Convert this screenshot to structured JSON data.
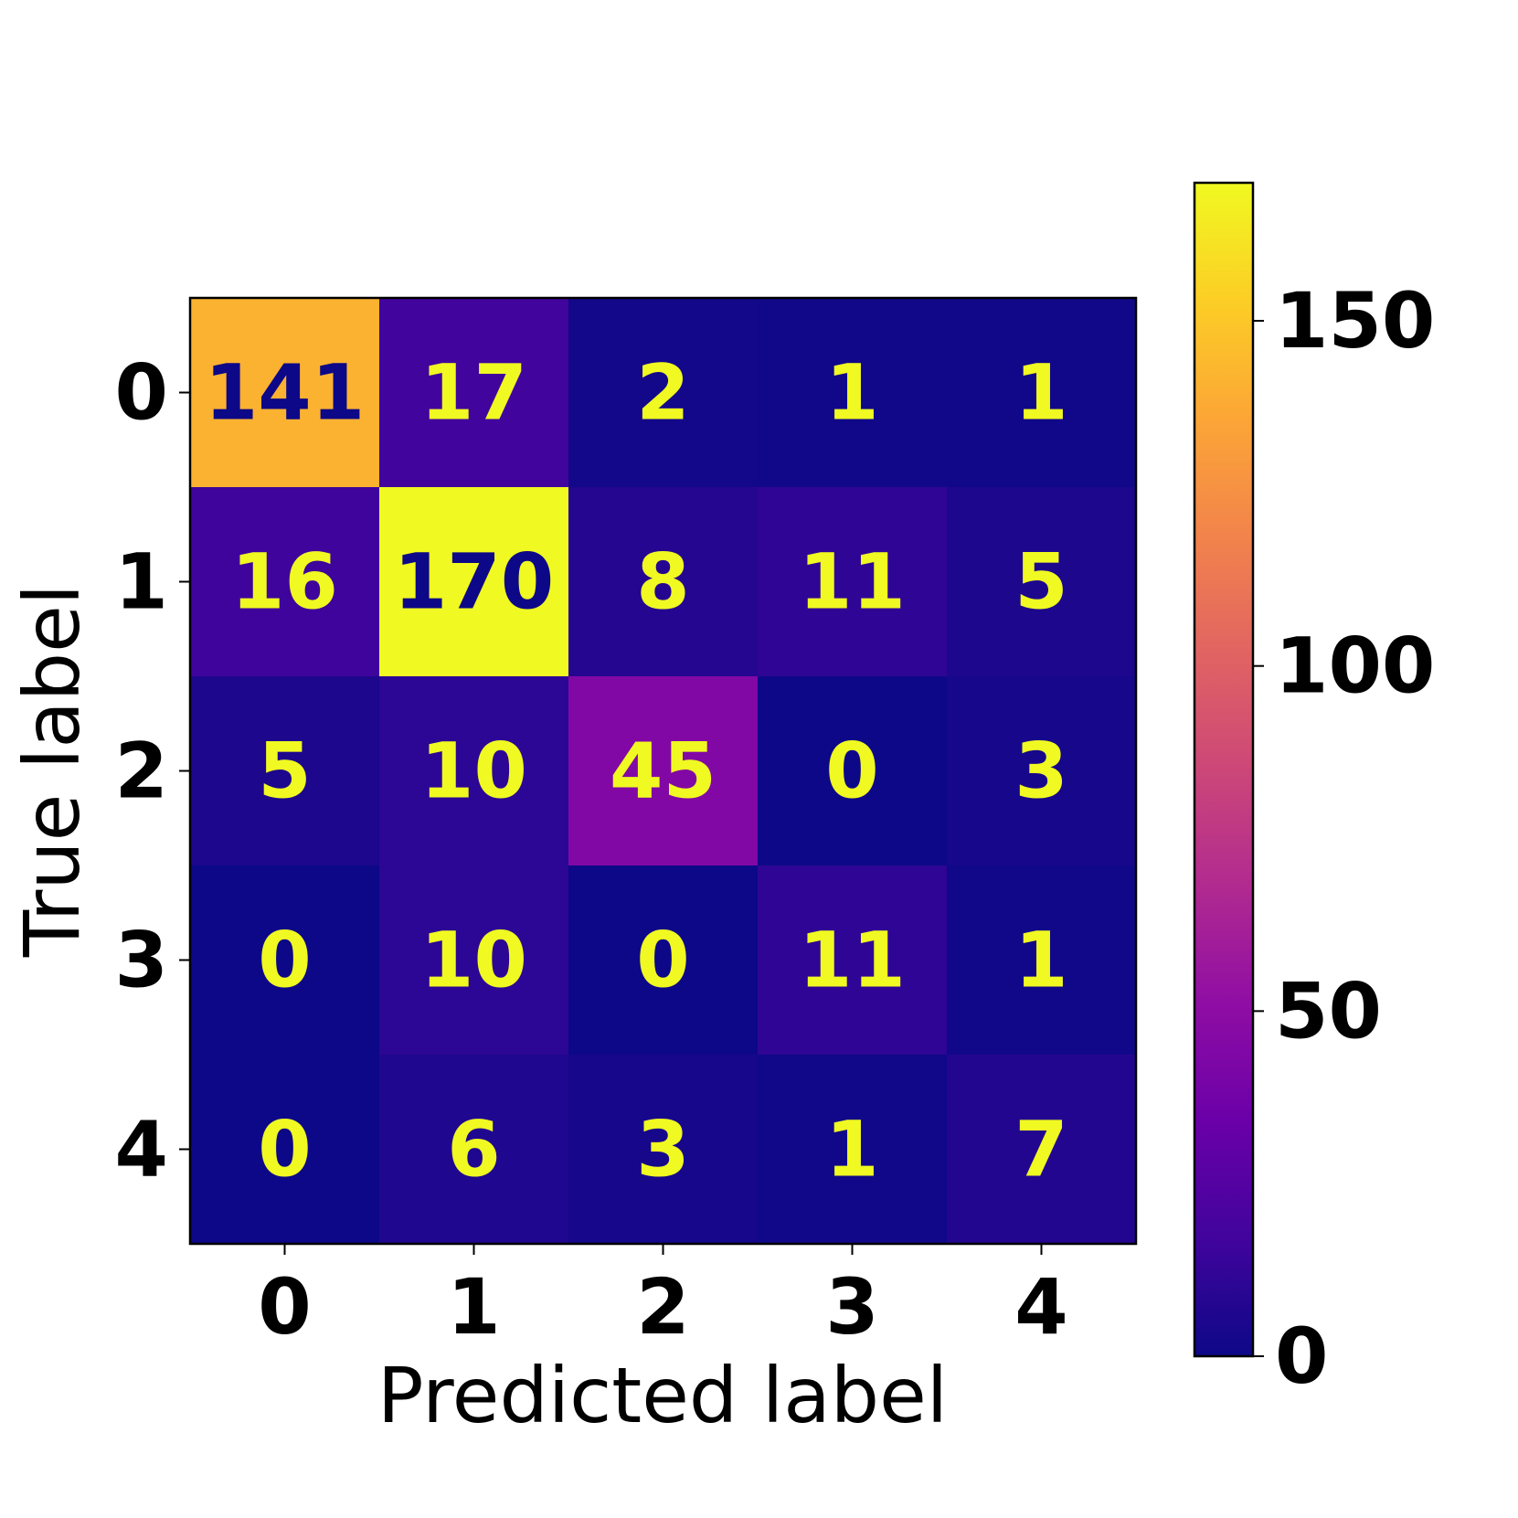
{
  "chart_data": {
    "type": "heatmap",
    "title": "",
    "xlabel": "Predicted label",
    "ylabel": "True label",
    "x_categories": [
      "0",
      "1",
      "2",
      "3",
      "4"
    ],
    "y_categories": [
      "0",
      "1",
      "2",
      "3",
      "4"
    ],
    "matrix": [
      [
        141,
        17,
        2,
        1,
        1
      ],
      [
        16,
        170,
        8,
        11,
        5
      ],
      [
        5,
        10,
        45,
        0,
        3
      ],
      [
        0,
        10,
        0,
        11,
        1
      ],
      [
        0,
        6,
        3,
        1,
        7
      ]
    ],
    "colormap": "plasma",
    "colorbar": {
      "range": [
        0,
        170
      ],
      "ticks": [
        0,
        50,
        100,
        150
      ],
      "tick_labels": [
        "0",
        "50",
        "100",
        "150"
      ]
    },
    "text_colors": {
      "on_dark": "#f0f921",
      "on_light": "#0d0887"
    },
    "grid": false,
    "legend": "none"
  }
}
